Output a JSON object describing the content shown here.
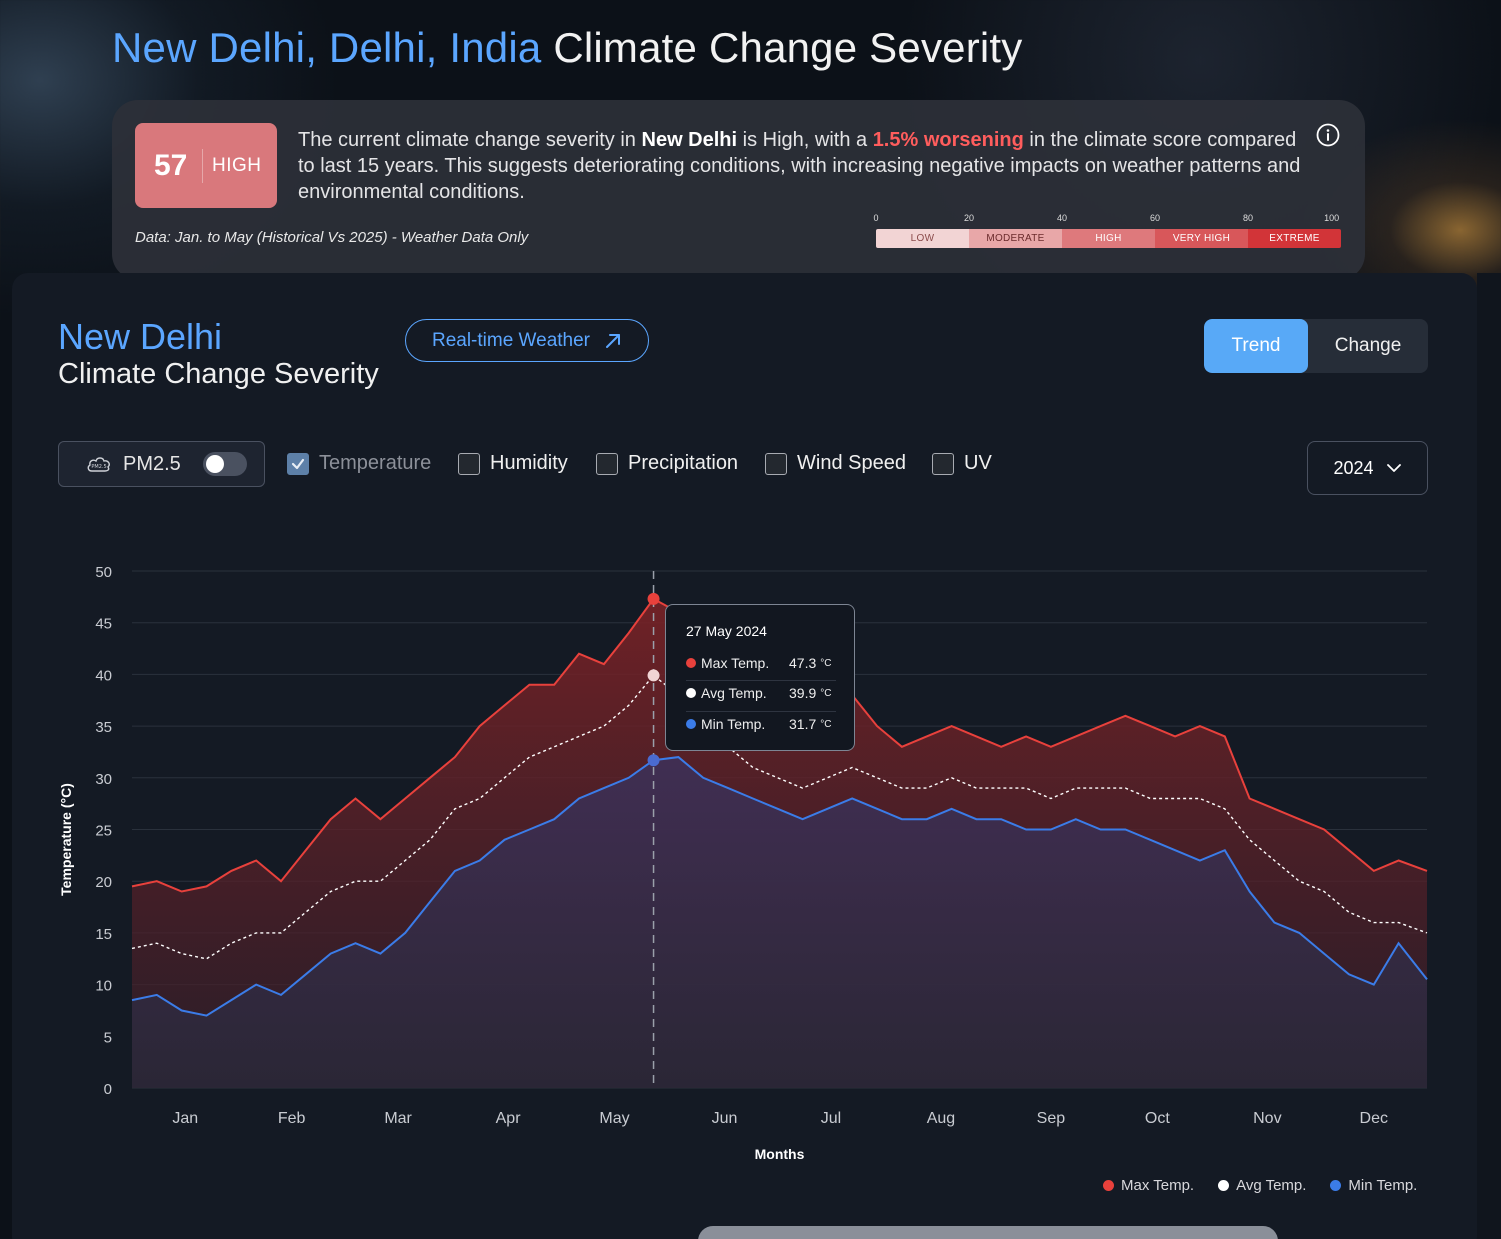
{
  "header": {
    "location": "New Delhi, Delhi, India",
    "title_rest": "Climate Change Severity"
  },
  "summary": {
    "score": "57",
    "level": "HIGH",
    "text_1": "The current climate change severity in ",
    "city": "New Delhi",
    "text_2": " is High, with a ",
    "worsening": "1.5% worsening",
    "text_3": " in the climate score compared to last 15 years. This suggests deteriorating conditions, with increasing negative impacts on weather patterns and environmental conditions.",
    "data_note": "Data: Jan. to May (Historical Vs 2025) - Weather Data Only",
    "info_icon": "info-circle-icon",
    "scale_ticks": [
      "0",
      "20",
      "40",
      "60",
      "80",
      "100"
    ],
    "scale_labels": [
      "LOW",
      "MODERATE",
      "HIGH",
      "VERY HIGH",
      "EXTREME"
    ],
    "scale_colors": [
      "#f2d4d4",
      "#e8a7a8",
      "#de797c",
      "#d8575a",
      "#d23438"
    ]
  },
  "panel": {
    "city": "New Delhi",
    "subtitle": "Climate Change Severity",
    "realtime_label": "Real-time Weather",
    "realtime_icon": "arrow-up-right-icon",
    "toggle": {
      "trend": "Trend",
      "change": "Change",
      "active": "Trend"
    },
    "pm_label": "PM2.5",
    "pm_icon": "cloud-pm-icon",
    "pm_on": false,
    "checks": [
      {
        "label": "Temperature",
        "checked": true
      },
      {
        "label": "Humidity",
        "checked": false
      },
      {
        "label": "Precipitation",
        "checked": false
      },
      {
        "label": "Wind Speed",
        "checked": false
      },
      {
        "label": "UV",
        "checked": false
      }
    ],
    "year": "2024"
  },
  "chart_data": {
    "type": "area",
    "xlabel": "Months",
    "ylabel": "Temperature (°C)",
    "ylim": [
      0,
      50
    ],
    "yticks": [
      0,
      5,
      10,
      15,
      20,
      25,
      30,
      35,
      40,
      45,
      50
    ],
    "x_ticks": [
      "Jan",
      "Feb",
      "Mar",
      "Apr",
      "May",
      "Jun",
      "Jul",
      "Aug",
      "Sep",
      "Oct",
      "Nov",
      "Dec"
    ],
    "x_domain": [
      "2024-01-01",
      "2024-12-31"
    ],
    "grid": true,
    "legend_position": "bottom-right",
    "series": [
      {
        "name": "Max Temp.",
        "color": "#e8413c",
        "points": [
          [
            "2024-01-01",
            19.5
          ],
          [
            "2024-01-08",
            20
          ],
          [
            "2024-01-15",
            19
          ],
          [
            "2024-01-22",
            19.5
          ],
          [
            "2024-01-29",
            21
          ],
          [
            "2024-02-05",
            22
          ],
          [
            "2024-02-12",
            20
          ],
          [
            "2024-02-19",
            23
          ],
          [
            "2024-02-26",
            26
          ],
          [
            "2024-03-04",
            28
          ],
          [
            "2024-03-11",
            26
          ],
          [
            "2024-03-18",
            28
          ],
          [
            "2024-03-25",
            30
          ],
          [
            "2024-04-01",
            32
          ],
          [
            "2024-04-08",
            35
          ],
          [
            "2024-04-15",
            37
          ],
          [
            "2024-04-22",
            39
          ],
          [
            "2024-04-29",
            39
          ],
          [
            "2024-05-06",
            42
          ],
          [
            "2024-05-13",
            41
          ],
          [
            "2024-05-20",
            44
          ],
          [
            "2024-05-27",
            47.3
          ],
          [
            "2024-06-03",
            46
          ],
          [
            "2024-06-10",
            42
          ],
          [
            "2024-06-17",
            38
          ],
          [
            "2024-06-24",
            35
          ],
          [
            "2024-07-01",
            34
          ],
          [
            "2024-07-08",
            33
          ],
          [
            "2024-07-15",
            35
          ],
          [
            "2024-07-22",
            38
          ],
          [
            "2024-07-29",
            35
          ],
          [
            "2024-08-05",
            33
          ],
          [
            "2024-08-12",
            34
          ],
          [
            "2024-08-19",
            35
          ],
          [
            "2024-08-26",
            34
          ],
          [
            "2024-09-02",
            33
          ],
          [
            "2024-09-09",
            34
          ],
          [
            "2024-09-16",
            33
          ],
          [
            "2024-09-23",
            34
          ],
          [
            "2024-09-30",
            35
          ],
          [
            "2024-10-07",
            36
          ],
          [
            "2024-10-14",
            35
          ],
          [
            "2024-10-21",
            34
          ],
          [
            "2024-10-28",
            35
          ],
          [
            "2024-11-04",
            34
          ],
          [
            "2024-11-11",
            28
          ],
          [
            "2024-11-18",
            27
          ],
          [
            "2024-11-25",
            26
          ],
          [
            "2024-12-02",
            25
          ],
          [
            "2024-12-09",
            23
          ],
          [
            "2024-12-16",
            21
          ],
          [
            "2024-12-23",
            22
          ],
          [
            "2024-12-31",
            21
          ]
        ]
      },
      {
        "name": "Avg Temp.",
        "color": "#ffffff",
        "points": [
          [
            "2024-01-01",
            13.5
          ],
          [
            "2024-01-08",
            14
          ],
          [
            "2024-01-15",
            13
          ],
          [
            "2024-01-22",
            12.5
          ],
          [
            "2024-01-29",
            14
          ],
          [
            "2024-02-05",
            15
          ],
          [
            "2024-02-12",
            15
          ],
          [
            "2024-02-19",
            17
          ],
          [
            "2024-02-26",
            19
          ],
          [
            "2024-03-04",
            20
          ],
          [
            "2024-03-11",
            20
          ],
          [
            "2024-03-18",
            22
          ],
          [
            "2024-03-25",
            24
          ],
          [
            "2024-04-01",
            27
          ],
          [
            "2024-04-08",
            28
          ],
          [
            "2024-04-15",
            30
          ],
          [
            "2024-04-22",
            32
          ],
          [
            "2024-04-29",
            33
          ],
          [
            "2024-05-06",
            34
          ],
          [
            "2024-05-13",
            35
          ],
          [
            "2024-05-20",
            37
          ],
          [
            "2024-05-27",
            39.9
          ],
          [
            "2024-06-03",
            38
          ],
          [
            "2024-06-10",
            35
          ],
          [
            "2024-06-17",
            33
          ],
          [
            "2024-06-24",
            31
          ],
          [
            "2024-07-01",
            30
          ],
          [
            "2024-07-08",
            29
          ],
          [
            "2024-07-15",
            30
          ],
          [
            "2024-07-22",
            31
          ],
          [
            "2024-07-29",
            30
          ],
          [
            "2024-08-05",
            29
          ],
          [
            "2024-08-12",
            29
          ],
          [
            "2024-08-19",
            30
          ],
          [
            "2024-08-26",
            29
          ],
          [
            "2024-09-02",
            29
          ],
          [
            "2024-09-09",
            29
          ],
          [
            "2024-09-16",
            28
          ],
          [
            "2024-09-23",
            29
          ],
          [
            "2024-09-30",
            29
          ],
          [
            "2024-10-07",
            29
          ],
          [
            "2024-10-14",
            28
          ],
          [
            "2024-10-21",
            28
          ],
          [
            "2024-10-28",
            28
          ],
          [
            "2024-11-04",
            27
          ],
          [
            "2024-11-11",
            24
          ],
          [
            "2024-11-18",
            22
          ],
          [
            "2024-11-25",
            20
          ],
          [
            "2024-12-02",
            19
          ],
          [
            "2024-12-09",
            17
          ],
          [
            "2024-12-16",
            16
          ],
          [
            "2024-12-23",
            16
          ],
          [
            "2024-12-31",
            15
          ]
        ]
      },
      {
        "name": "Min Temp.",
        "color": "#3b7ce8",
        "points": [
          [
            "2024-01-01",
            8.5
          ],
          [
            "2024-01-08",
            9
          ],
          [
            "2024-01-15",
            7.5
          ],
          [
            "2024-01-22",
            7
          ],
          [
            "2024-01-29",
            8.5
          ],
          [
            "2024-02-05",
            10
          ],
          [
            "2024-02-12",
            9
          ],
          [
            "2024-02-19",
            11
          ],
          [
            "2024-02-26",
            13
          ],
          [
            "2024-03-04",
            14
          ],
          [
            "2024-03-11",
            13
          ],
          [
            "2024-03-18",
            15
          ],
          [
            "2024-03-25",
            18
          ],
          [
            "2024-04-01",
            21
          ],
          [
            "2024-04-08",
            22
          ],
          [
            "2024-04-15",
            24
          ],
          [
            "2024-04-22",
            25
          ],
          [
            "2024-04-29",
            26
          ],
          [
            "2024-05-06",
            28
          ],
          [
            "2024-05-13",
            29
          ],
          [
            "2024-05-20",
            30
          ],
          [
            "2024-05-27",
            31.7
          ],
          [
            "2024-06-03",
            32
          ],
          [
            "2024-06-10",
            30
          ],
          [
            "2024-06-17",
            29
          ],
          [
            "2024-06-24",
            28
          ],
          [
            "2024-07-01",
            27
          ],
          [
            "2024-07-08",
            26
          ],
          [
            "2024-07-15",
            27
          ],
          [
            "2024-07-22",
            28
          ],
          [
            "2024-07-29",
            27
          ],
          [
            "2024-08-05",
            26
          ],
          [
            "2024-08-12",
            26
          ],
          [
            "2024-08-19",
            27
          ],
          [
            "2024-08-26",
            26
          ],
          [
            "2024-09-02",
            26
          ],
          [
            "2024-09-09",
            25
          ],
          [
            "2024-09-16",
            25
          ],
          [
            "2024-09-23",
            26
          ],
          [
            "2024-09-30",
            25
          ],
          [
            "2024-10-07",
            25
          ],
          [
            "2024-10-14",
            24
          ],
          [
            "2024-10-21",
            23
          ],
          [
            "2024-10-28",
            22
          ],
          [
            "2024-11-04",
            23
          ],
          [
            "2024-11-11",
            19
          ],
          [
            "2024-11-18",
            16
          ],
          [
            "2024-11-25",
            15
          ],
          [
            "2024-12-02",
            13
          ],
          [
            "2024-12-09",
            11
          ],
          [
            "2024-12-16",
            10
          ],
          [
            "2024-12-23",
            14
          ],
          [
            "2024-12-31",
            10.5
          ]
        ]
      }
    ],
    "tooltip": {
      "date": "27 May 2024",
      "unit": "°C",
      "rows": [
        {
          "label": "Max Temp.",
          "value": "47.3"
        },
        {
          "label": "Avg Temp.",
          "value": "39.9"
        },
        {
          "label": "Min Temp.",
          "value": "31.7"
        }
      ]
    }
  }
}
